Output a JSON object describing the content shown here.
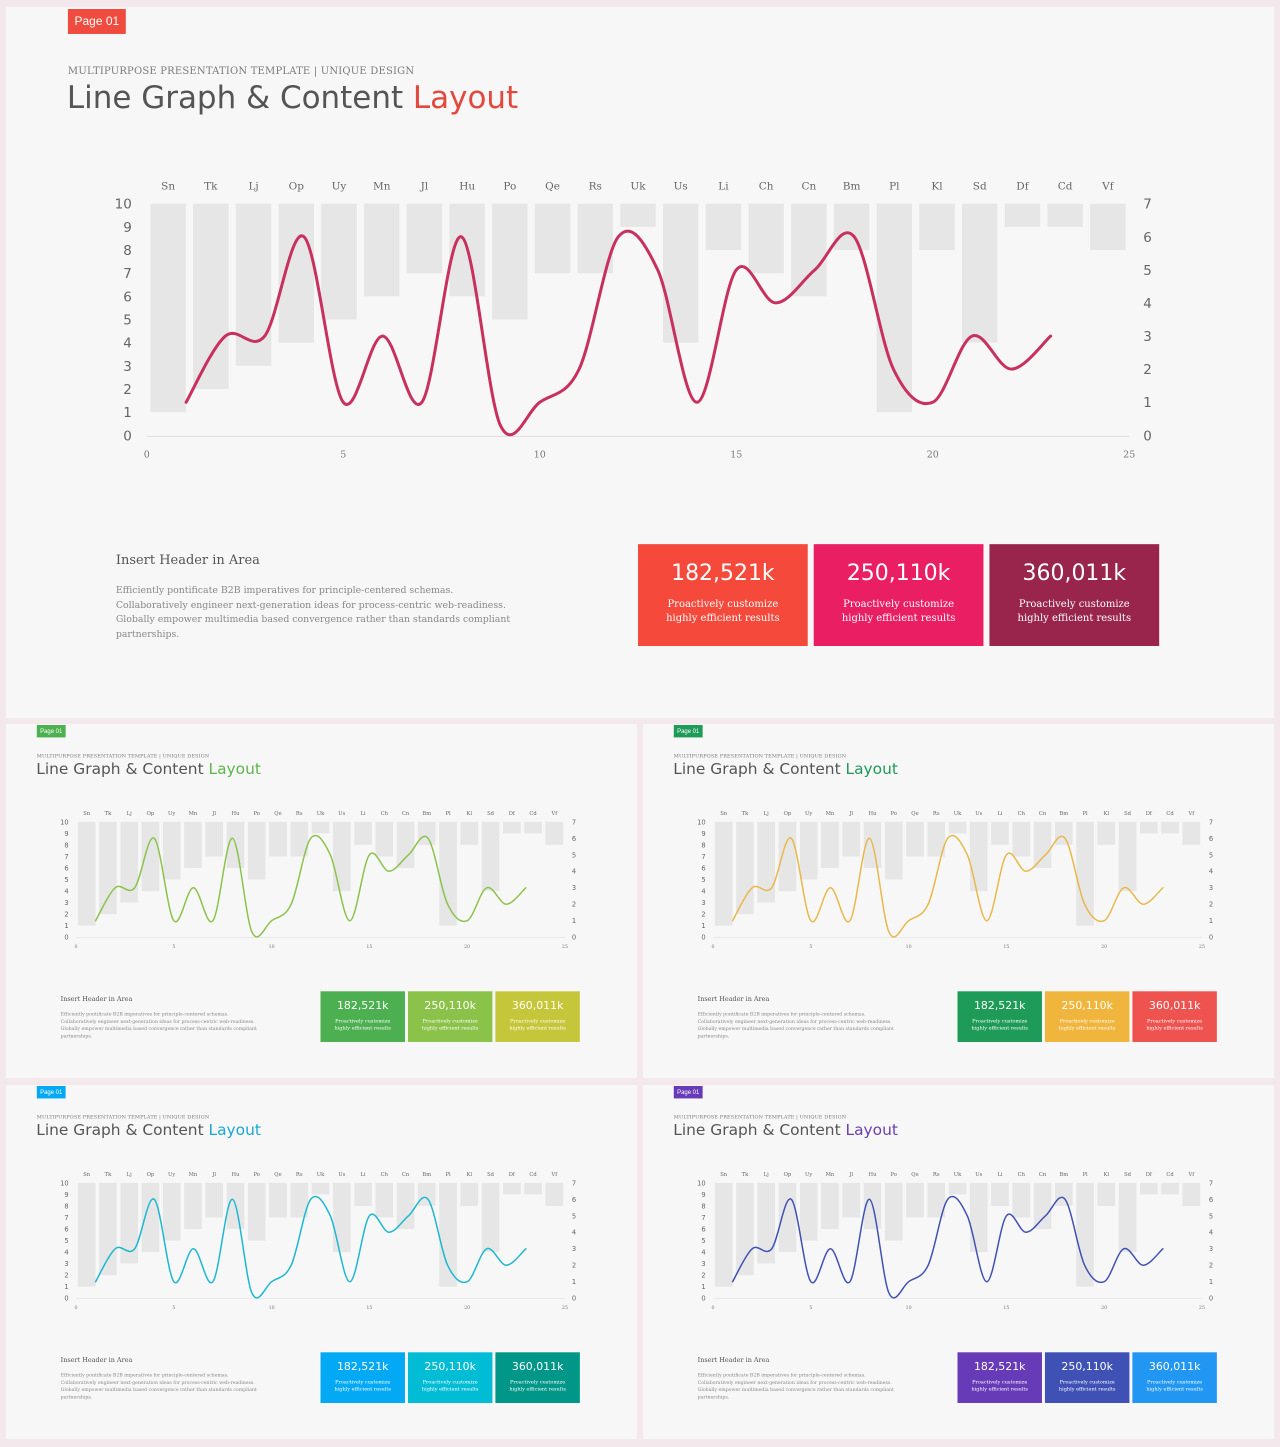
{
  "slides": [
    {
      "badge": "Page 01",
      "subtitle": "MULTIPURPOSE PRESENTATION TEMPLATE | UNIQUE DESIGN",
      "title_main": "Line Graph & Content",
      "title_accent": "Layout",
      "accent": "#e4473c",
      "badge_color": "#f04b3f",
      "line_color": "#c8305e",
      "content_header": "Insert Header  in Area",
      "content_body": "Efficiently pontificate B2B imperatives for principle-centered schemas. Collaboratively engineer next-generation ideas for process-centric web-readiness. Globally empower multimedia based convergence rather than standards compliant partnerships.",
      "stats": [
        {
          "value": "182,521k",
          "label": "Proactively customize highly efficient results",
          "color": "#f4493b"
        },
        {
          "value": "250,110k",
          "label": "Proactively customize highly efficient results",
          "color": "#e91e63"
        },
        {
          "value": "360,011k",
          "label": "Proactively customize highly efficient results",
          "color": "#99254c"
        }
      ]
    },
    {
      "badge": "Page 01",
      "subtitle": "MULTIPURPOSE PRESENTATION TEMPLATE | UNIQUE DESIGN",
      "title_main": "Line Graph & Content",
      "title_accent": "Layout",
      "accent": "#5cb54d",
      "badge_color": "#4caf50",
      "line_color": "#8bc34a",
      "content_header": "Insert Header  in Area",
      "content_body": "Efficiently pontificate B2B imperatives for principle-centered schemas. Collaboratively engineer next-generation ideas for process-centric web-readiness. Globally empower multimedia based convergence rather than standards compliant partnerships.",
      "stats": [
        {
          "value": "182,521k",
          "label": "Proactively customize highly efficient results",
          "color": "#4caf50"
        },
        {
          "value": "250,110k",
          "label": "Proactively customize highly efficient results",
          "color": "#8bc34a"
        },
        {
          "value": "360,011k",
          "label": "Proactively customize highly efficient results",
          "color": "#c6c63a"
        }
      ]
    },
    {
      "badge": "Page 01",
      "subtitle": "MULTIPURPOSE PRESENTATION TEMPLATE | UNIQUE DESIGN",
      "title_main": "Line Graph & Content",
      "title_accent": "Layout",
      "accent": "#1e9b57",
      "badge_color": "#1e9b57",
      "line_color": "#e8b84a",
      "content_header": "Insert Header  in Area",
      "content_body": "Efficiently pontificate B2B imperatives for principle-centered schemas. Collaboratively engineer next-generation ideas for process-centric web-readiness. Globally empower multimedia based convergence rather than standards compliant partnerships.",
      "stats": [
        {
          "value": "182,521k",
          "label": "Proactively customize highly efficient results",
          "color": "#1e9b57"
        },
        {
          "value": "250,110k",
          "label": "Proactively customize highly efficient results",
          "color": "#f0b53c"
        },
        {
          "value": "360,011k",
          "label": "Proactively customize highly efficient results",
          "color": "#ef5350"
        }
      ]
    },
    {
      "badge": "Page 01",
      "subtitle": "MULTIPURPOSE PRESENTATION TEMPLATE | UNIQUE DESIGN",
      "title_main": "Line Graph & Content",
      "title_accent": "Layout",
      "accent": "#19a6d6",
      "badge_color": "#03a9f4",
      "line_color": "#1bb8d0",
      "content_header": "Insert Header  in Area",
      "content_body": "Efficiently pontificate B2B imperatives for principle-centered schemas. Collaboratively engineer next-generation ideas for process-centric web-readiness. Globally empower multimedia based convergence rather than standards compliant partnerships.",
      "stats": [
        {
          "value": "182,521k",
          "label": "Proactively customize highly efficient results",
          "color": "#03a9f4"
        },
        {
          "value": "250,110k",
          "label": "Proactively customize highly efficient results",
          "color": "#00bcd4"
        },
        {
          "value": "360,011k",
          "label": "Proactively customize highly efficient results",
          "color": "#009688"
        }
      ]
    },
    {
      "badge": "Page 01",
      "subtitle": "MULTIPURPOSE PRESENTATION TEMPLATE | UNIQUE DESIGN",
      "title_main": "Line Graph & Content",
      "title_accent": "Layout",
      "accent": "#6a3fb0",
      "badge_color": "#673ab7",
      "line_color": "#3f51b5",
      "content_header": "Insert Header  in Area",
      "content_body": "Efficiently pontificate B2B imperatives for principle-centered schemas. Collaboratively engineer next-generation ideas for process-centric web-readiness. Globally empower multimedia based convergence rather than standards compliant partnerships.",
      "stats": [
        {
          "value": "182,521k",
          "label": "Proactively customize highly efficient results",
          "color": "#673ab7"
        },
        {
          "value": "250,110k",
          "label": "Proactively customize highly efficient results",
          "color": "#3f51b5"
        },
        {
          "value": "360,011k",
          "label": "Proactively customize highly efficient results",
          "color": "#2196f3"
        }
      ]
    }
  ],
  "chart_data": {
    "type": "line",
    "categories": [
      "Sn",
      "Tk",
      "Lj",
      "Op",
      "Uy",
      "Mn",
      "Jl",
      "Hu",
      "Po",
      "Qe",
      "Rs",
      "Uk",
      "Us",
      "Li",
      "Ch",
      "Cn",
      "Bm",
      "Pl",
      "Kl",
      "Sd",
      "Df",
      "Cd",
      "Vf"
    ],
    "bar_values": [
      1,
      2,
      3,
      4,
      5,
      6,
      7,
      6,
      5,
      7,
      7,
      9,
      4,
      8,
      7,
      6,
      8,
      1,
      8,
      4,
      9,
      9,
      8
    ],
    "bar_ylim": [
      0,
      10
    ],
    "yticks_left": [
      0,
      1,
      2,
      3,
      4,
      5,
      6,
      7,
      8,
      9,
      10
    ],
    "yticks_right": [
      0,
      1,
      2,
      3,
      4,
      5,
      6,
      7
    ],
    "xticks": [
      0,
      5,
      10,
      15,
      20,
      25
    ],
    "xlim": [
      0,
      25
    ],
    "line_x": [
      1,
      2,
      3,
      4,
      5,
      6,
      7,
      8,
      9,
      10,
      11,
      12,
      13,
      14,
      15,
      16,
      17,
      18,
      19,
      20,
      21,
      22,
      23
    ],
    "line_y": [
      1,
      3,
      3,
      6,
      1,
      3,
      1,
      6,
      0.3,
      1,
      2,
      6,
      5,
      1,
      5,
      4,
      5,
      6,
      2,
      1,
      3,
      2,
      3
    ],
    "line_ylim": [
      0,
      7
    ],
    "grid": false
  }
}
